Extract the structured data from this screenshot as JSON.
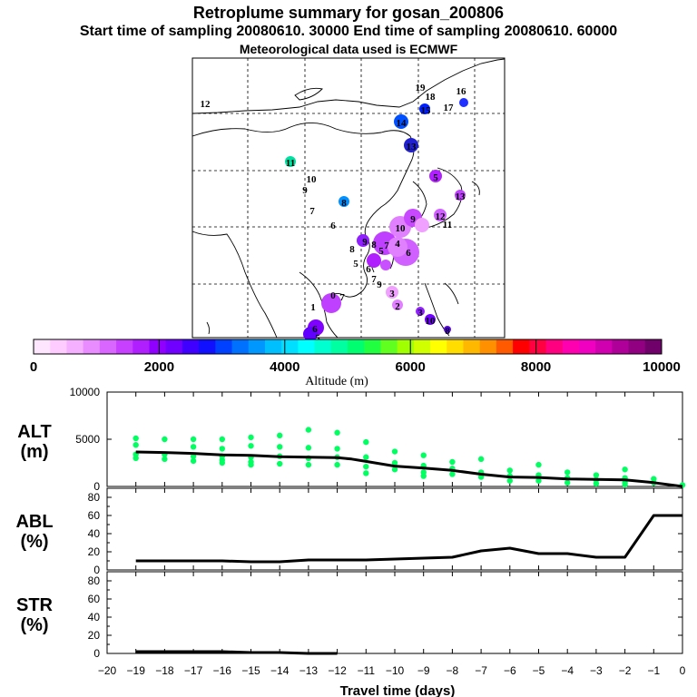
{
  "header": {
    "title": "Retroplume summary for gosan_200806",
    "sampling": "Start time of sampling 20080610. 30000     End time of sampling 20080610. 60000",
    "met": "Meteorological data used is ECMWF"
  },
  "colorbar": {
    "label": "Altitude (m)",
    "ticks": [
      "0",
      "2000",
      "4000",
      "6000",
      "8000",
      "10000"
    ],
    "colors": [
      "#ffe6ff",
      "#ffccff",
      "#f5b0ff",
      "#e88cff",
      "#d966ff",
      "#c840ff",
      "#b020ff",
      "#9000ff",
      "#7000ff",
      "#4000ff",
      "#1010ff",
      "#0040ff",
      "#0070ff",
      "#0098ff",
      "#00bfff",
      "#00dfff",
      "#00ffff",
      "#00ffd0",
      "#00ffa0",
      "#00ff70",
      "#20ff40",
      "#60ff20",
      "#a0ff00",
      "#d0ff00",
      "#ffff00",
      "#ffdd00",
      "#ffb800",
      "#ff9000",
      "#ff5a00",
      "#ff0000",
      "#ff0040",
      "#ff0080",
      "#ff00b0",
      "#f000c0",
      "#d000b0",
      "#b0009a",
      "#900080",
      "#70006a"
    ]
  },
  "map": {
    "labels": [
      {
        "t": "19",
        "c": "#1060ff"
      },
      {
        "t": "18",
        "c": "#0040ff"
      },
      {
        "t": "17",
        "c": "#1080ff"
      },
      {
        "t": "16",
        "c": "#2030ff"
      },
      {
        "t": "15",
        "c": "#0020ff"
      },
      {
        "t": "14",
        "c": "#0050ff"
      },
      {
        "t": "13",
        "c": "#2020d0"
      },
      {
        "t": "12",
        "c": "#ffff00"
      },
      {
        "t": "11",
        "c": "#00e0a0"
      },
      {
        "t": "10",
        "c": "#00b0ff"
      },
      {
        "t": "9",
        "c": "#0090ff"
      },
      {
        "t": "8",
        "c": "#4000ff"
      },
      {
        "t": "7",
        "c": "#00c0ff"
      },
      {
        "t": "6",
        "c": "#1020ff"
      },
      {
        "t": "5",
        "c": "#2000ff"
      },
      {
        "t": "13",
        "c": "#b020ff"
      },
      {
        "t": "12",
        "c": "#c040ff"
      },
      {
        "t": "11",
        "c": "#d060ff"
      },
      {
        "t": "10",
        "c": "#9020ff"
      },
      {
        "t": "9",
        "c": "#a040ff"
      },
      {
        "t": "8",
        "c": "#e070ff"
      },
      {
        "t": "7",
        "c": "#b020ff"
      },
      {
        "t": "6",
        "c": "#9000ff"
      },
      {
        "t": "5",
        "c": "#c850ff"
      },
      {
        "t": "4",
        "c": "#d060ff"
      },
      {
        "t": "3",
        "c": "#c848ff"
      },
      {
        "t": "2",
        "c": "#e080ff"
      },
      {
        "t": "1",
        "c": "#f0a0ff"
      },
      {
        "t": "0",
        "c": "#f5b8ff"
      },
      {
        "t": "7",
        "c": "#c040ff"
      },
      {
        "t": "6",
        "c": "#d060ff"
      },
      {
        "t": "5",
        "c": "#ffffff"
      },
      {
        "t": "3",
        "c": "#8000ff"
      },
      {
        "t": "10",
        "c": "#6000ff"
      },
      {
        "t": "8",
        "c": "#7000ff"
      },
      {
        "t": "9",
        "c": "#6000ff"
      },
      {
        "t": "5",
        "c": "#f0a0ff"
      },
      {
        "t": "6",
        "c": "#e080ff"
      },
      {
        "t": "7",
        "c": "#9020ff"
      },
      {
        "t": "9",
        "c": "#c050ff"
      },
      {
        "t": "8",
        "c": "#00b0c0"
      }
    ]
  },
  "chart_data": [
    {
      "type": "scatter",
      "name": "ALT",
      "ylabel": "ALT",
      "yunit": "(m)",
      "ylim": [
        0,
        10000
      ],
      "yticks": [
        "10000",
        "5000",
        "0"
      ],
      "xlim": [
        -20,
        0
      ],
      "line": {
        "x": [
          -19,
          -18,
          -17,
          -16,
          -15,
          -14,
          -13,
          -12,
          -11.5,
          -11,
          -10,
          -9,
          -8,
          -7,
          -6,
          -5,
          -4,
          -3,
          -2,
          -1,
          0
        ],
        "y": [
          3650,
          3600,
          3500,
          3350,
          3300,
          3150,
          3100,
          3050,
          2900,
          2650,
          2150,
          1950,
          1700,
          1300,
          1000,
          950,
          800,
          750,
          700,
          400,
          0
        ]
      },
      "points": [
        [
          -19,
          5100
        ],
        [
          -19,
          4400
        ],
        [
          -19,
          3400
        ],
        [
          -19,
          3000
        ],
        [
          -18,
          5000
        ],
        [
          -18,
          3400
        ],
        [
          -18,
          2900
        ],
        [
          -17,
          5000
        ],
        [
          -17,
          4200
        ],
        [
          -17,
          3200
        ],
        [
          -17,
          2700
        ],
        [
          -16,
          5000
        ],
        [
          -16,
          4000
        ],
        [
          -16,
          3200
        ],
        [
          -16,
          2800
        ],
        [
          -16,
          2500
        ],
        [
          -15,
          5200
        ],
        [
          -15,
          4300
        ],
        [
          -15,
          3100
        ],
        [
          -15,
          2600
        ],
        [
          -15,
          2300
        ],
        [
          -14,
          5400
        ],
        [
          -14,
          4200
        ],
        [
          -14,
          3200
        ],
        [
          -14,
          2400
        ],
        [
          -13,
          6000
        ],
        [
          -13,
          4100
        ],
        [
          -13,
          3000
        ],
        [
          -13,
          2300
        ],
        [
          -12,
          5700
        ],
        [
          -12,
          4000
        ],
        [
          -12,
          3100
        ],
        [
          -12,
          2300
        ],
        [
          -11,
          4700
        ],
        [
          -11,
          3100
        ],
        [
          -11,
          2100
        ],
        [
          -11,
          1400
        ],
        [
          -10,
          3700
        ],
        [
          -10,
          2500
        ],
        [
          -10,
          1800
        ],
        [
          -9,
          3300
        ],
        [
          -9,
          2200
        ],
        [
          -9,
          1500
        ],
        [
          -9,
          1100
        ],
        [
          -8,
          2600
        ],
        [
          -8,
          1900
        ],
        [
          -8,
          1300
        ],
        [
          -7,
          2900
        ],
        [
          -7,
          1500
        ],
        [
          -7,
          1000
        ],
        [
          -6,
          1700
        ],
        [
          -6,
          1100
        ],
        [
          -6,
          600
        ],
        [
          -5,
          2300
        ],
        [
          -5,
          1200
        ],
        [
          -5,
          600
        ],
        [
          -4,
          1500
        ],
        [
          -4,
          900
        ],
        [
          -4,
          400
        ],
        [
          -3,
          1200
        ],
        [
          -3,
          700
        ],
        [
          -3,
          300
        ],
        [
          -2,
          1800
        ],
        [
          -2,
          900
        ],
        [
          -2,
          400
        ],
        [
          -2,
          200
        ],
        [
          -1,
          800
        ],
        [
          -1,
          400
        ],
        [
          0,
          150
        ]
      ]
    },
    {
      "type": "line",
      "name": "ABL",
      "ylabel": "ABL",
      "yunit": "(%)",
      "ylim": [
        0,
        90
      ],
      "yticks": [
        "80",
        "60",
        "40",
        "20",
        "0"
      ],
      "xlim": [
        -20,
        0
      ],
      "x": [
        -19,
        -18,
        -17,
        -16,
        -15,
        -14,
        -13,
        -12,
        -11,
        -10,
        -9,
        -8,
        -7,
        -6,
        -5,
        -4,
        -3,
        -2,
        -1,
        0
      ],
      "y": [
        10,
        10,
        10,
        10,
        9,
        9,
        11,
        11,
        11,
        12,
        13,
        14,
        21,
        24,
        18,
        18,
        14,
        14,
        60,
        60
      ]
    },
    {
      "type": "line",
      "name": "STR",
      "ylabel": "STR",
      "yunit": "(%)",
      "ylim": [
        0,
        90
      ],
      "yticks": [
        "80",
        "60",
        "40",
        "20",
        "0"
      ],
      "xlim": [
        -20,
        0
      ],
      "x": [
        -19,
        -18,
        -17,
        -16,
        -15,
        -14,
        -13,
        -12
      ],
      "y": [
        2,
        2,
        2,
        2,
        1,
        1,
        0,
        0
      ]
    }
  ],
  "xaxis": {
    "label": "Travel time (days)",
    "ticks": [
      "−20",
      "−19",
      "−18",
      "−17",
      "−16",
      "−15",
      "−14",
      "−13",
      "−12",
      "−11",
      "−10",
      "−9",
      "−8",
      "−7",
      "−6",
      "−5",
      "−4",
      "−3",
      "−2",
      "−1",
      "0"
    ]
  },
  "colors": {
    "scatter": "#00ff60",
    "line": "#000000"
  }
}
